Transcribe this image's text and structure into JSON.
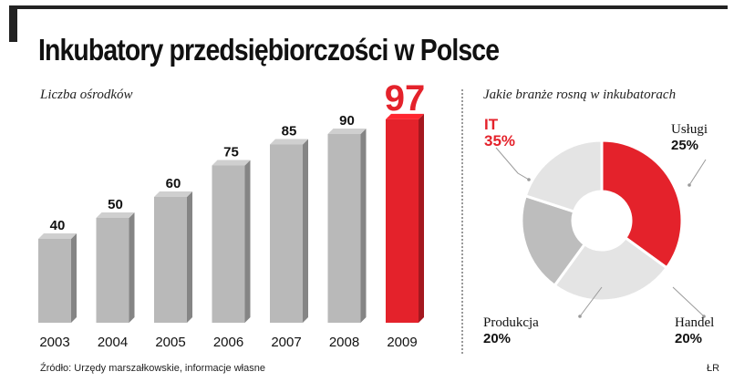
{
  "title": "Inkubatory przedsiębiorczości w Polsce",
  "source": "Źródło: Urzędy marszałkowskie, informacje własne",
  "credit": "ŁR",
  "colors": {
    "bar_gray": "#b9b9b9",
    "bar_red": "#e4222b",
    "pie_light": "#e4e4e4",
    "pie_mid": "#bdbdbd"
  },
  "chart_data": [
    {
      "type": "bar",
      "title": "Liczba ośrodków",
      "categories": [
        "2003",
        "2004",
        "2005",
        "2006",
        "2007",
        "2008",
        "2009"
      ],
      "values": [
        40,
        50,
        60,
        75,
        85,
        90,
        97
      ],
      "value_labels": [
        "40",
        "50",
        "60",
        "75",
        "85",
        "90",
        "97"
      ],
      "highlight_index": 6,
      "ylim": [
        0,
        100
      ],
      "xlabel": "",
      "ylabel": "",
      "grid": false
    },
    {
      "type": "pie",
      "title": "Jakie branże rosną w inkubatorach",
      "slices": [
        {
          "name": "IT",
          "pct_label": "35%",
          "value": 35,
          "color": "#e4222b"
        },
        {
          "name": "Usługi",
          "pct_label": "25%",
          "value": 25,
          "color": "#e4e4e4"
        },
        {
          "name": "Handel",
          "pct_label": "20%",
          "value": 20,
          "color": "#bdbdbd"
        },
        {
          "name": "Produkcja",
          "pct_label": "20%",
          "value": 20,
          "color": "#e4e4e4"
        }
      ]
    }
  ]
}
